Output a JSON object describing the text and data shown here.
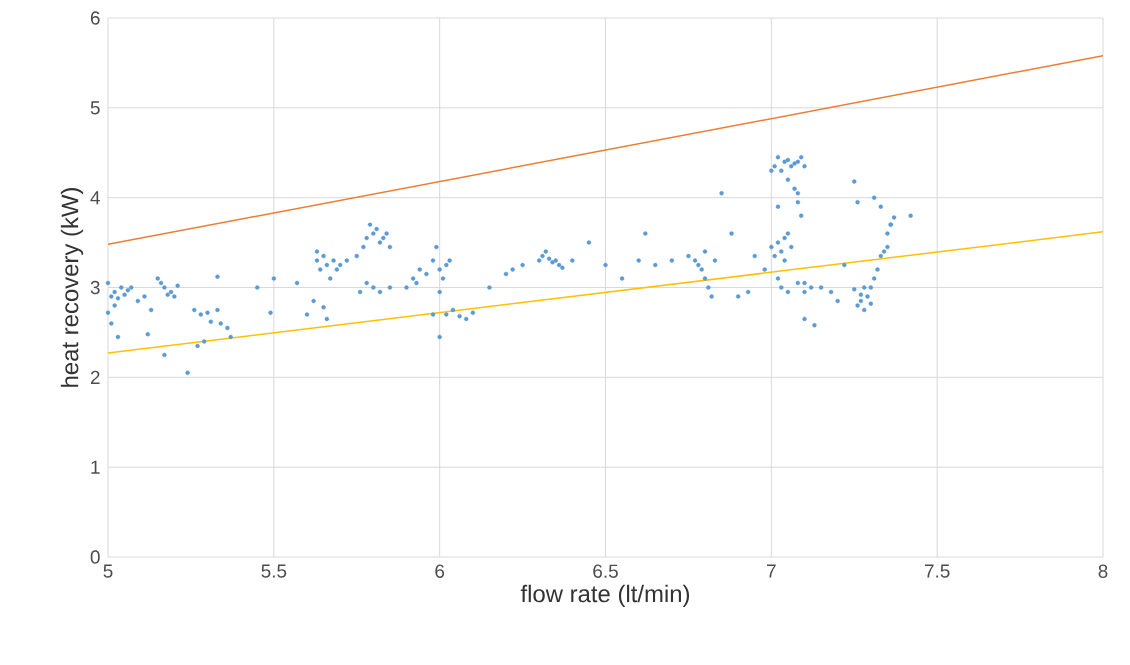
{
  "chart_data": {
    "type": "scatter",
    "xlabel": "flow rate (lt/min)",
    "ylabel": "heat recovery (kW)",
    "xlim": [
      5,
      8
    ],
    "ylim": [
      0,
      6
    ],
    "xticks": [
      5,
      5.5,
      6,
      6.5,
      7,
      7.5,
      8
    ],
    "yticks": [
      0,
      1,
      2,
      3,
      4,
      5,
      6
    ],
    "grid": true,
    "series": [
      {
        "color": "#5b9bd5",
        "x": [
          5.0,
          5.01,
          5.02,
          5.03,
          5.04,
          5.05,
          5.06,
          5.07,
          5.02,
          5.01,
          5.0,
          5.03,
          5.09,
          5.11,
          5.15,
          5.16,
          5.17,
          5.19,
          5.2,
          5.21,
          5.18,
          5.13,
          5.12,
          5.17,
          5.24,
          5.26,
          5.28,
          5.3,
          5.31,
          5.33,
          5.34,
          5.36,
          5.37,
          5.29,
          5.27,
          5.33,
          5.45,
          5.5,
          5.49,
          5.57,
          5.6,
          5.62,
          5.63,
          5.64,
          5.65,
          5.66,
          5.67,
          5.68,
          5.69,
          5.7,
          5.65,
          5.66,
          5.63,
          5.72,
          5.75,
          5.77,
          5.78,
          5.79,
          5.8,
          5.81,
          5.82,
          5.83,
          5.84,
          5.85,
          5.78,
          5.76,
          5.8,
          5.82,
          5.85,
          5.9,
          5.92,
          5.94,
          5.96,
          5.98,
          5.99,
          6.0,
          6.01,
          6.02,
          6.03,
          6.0,
          5.98,
          6.04,
          6.06,
          6.08,
          6.1,
          6.02,
          6.0,
          5.93,
          6.15,
          6.2,
          6.22,
          6.25,
          6.3,
          6.31,
          6.32,
          6.33,
          6.34,
          6.35,
          6.36,
          6.37,
          6.4,
          6.45,
          6.5,
          6.55,
          6.6,
          6.62,
          6.65,
          6.7,
          6.75,
          6.77,
          6.78,
          6.79,
          6.8,
          6.81,
          6.82,
          6.83,
          6.8,
          6.85,
          6.88,
          6.9,
          6.93,
          6.95,
          6.98,
          7.0,
          7.01,
          7.02,
          7.03,
          7.04,
          7.05,
          7.06,
          7.07,
          7.08,
          7.09,
          7.1,
          7.02,
          7.05,
          7.07,
          7.08,
          7.09,
          7.08,
          7.0,
          7.01,
          7.02,
          7.03,
          7.04,
          7.05,
          7.06,
          7.04,
          7.02,
          7.03,
          7.05,
          7.08,
          7.1,
          7.12,
          7.15,
          7.18,
          7.2,
          7.1,
          7.1,
          7.13,
          7.22,
          7.25,
          7.26,
          7.27,
          7.28,
          7.29,
          7.3,
          7.27,
          7.28,
          7.3,
          7.31,
          7.32,
          7.33,
          7.34,
          7.35,
          7.36,
          7.33,
          7.31,
          7.25,
          7.26,
          7.42,
          7.37,
          7.36,
          7.35
        ],
        "values": [
          3.05,
          2.9,
          2.95,
          2.88,
          3.0,
          2.92,
          2.97,
          3.0,
          2.8,
          2.6,
          2.72,
          2.45,
          2.85,
          2.9,
          3.1,
          3.05,
          3.0,
          2.95,
          2.9,
          3.02,
          2.92,
          2.75,
          2.48,
          2.25,
          2.05,
          2.75,
          2.7,
          2.72,
          2.62,
          2.75,
          2.6,
          2.55,
          2.45,
          2.4,
          2.35,
          3.12,
          3.0,
          3.1,
          2.72,
          3.05,
          2.7,
          2.85,
          3.3,
          3.2,
          3.35,
          3.25,
          3.1,
          3.3,
          3.2,
          3.25,
          2.78,
          2.65,
          3.4,
          3.3,
          3.35,
          3.45,
          3.55,
          3.7,
          3.6,
          3.65,
          3.5,
          3.55,
          3.6,
          3.45,
          3.05,
          2.95,
          3.0,
          2.95,
          3.0,
          3.0,
          3.1,
          3.2,
          3.15,
          3.3,
          3.45,
          3.2,
          3.1,
          3.25,
          3.3,
          2.95,
          2.7,
          2.75,
          2.68,
          2.65,
          2.72,
          2.7,
          2.45,
          3.05,
          3.0,
          3.15,
          3.2,
          3.25,
          3.3,
          3.35,
          3.4,
          3.32,
          3.28,
          3.3,
          3.25,
          3.22,
          3.3,
          3.5,
          3.25,
          3.1,
          3.3,
          3.6,
          3.25,
          3.3,
          3.35,
          3.3,
          3.25,
          3.2,
          3.1,
          3.0,
          2.9,
          3.3,
          3.4,
          4.05,
          3.6,
          2.9,
          2.95,
          3.35,
          3.2,
          4.3,
          4.35,
          4.45,
          4.3,
          4.4,
          4.42,
          4.35,
          4.38,
          4.4,
          4.45,
          4.35,
          3.9,
          4.2,
          4.1,
          3.95,
          3.8,
          4.05,
          3.45,
          3.35,
          3.5,
          3.4,
          3.55,
          3.6,
          3.45,
          3.3,
          3.1,
          3.0,
          2.95,
          3.05,
          2.95,
          3.0,
          3.0,
          2.95,
          2.85,
          3.05,
          2.65,
          2.58,
          3.25,
          2.98,
          2.8,
          2.85,
          2.75,
          2.9,
          3.0,
          2.92,
          3.0,
          2.82,
          3.1,
          3.2,
          3.35,
          3.4,
          3.6,
          3.7,
          3.9,
          4.0,
          4.18,
          3.95,
          3.8,
          3.78,
          3.7,
          3.45
        ]
      },
      {
        "type": "line",
        "color": "#ed7d31",
        "x": [
          5,
          8
        ],
        "values": [
          3.48,
          5.58
        ]
      },
      {
        "type": "line",
        "color": "#ffc000",
        "x": [
          5,
          8
        ],
        "values": [
          2.27,
          3.62
        ]
      }
    ]
  }
}
